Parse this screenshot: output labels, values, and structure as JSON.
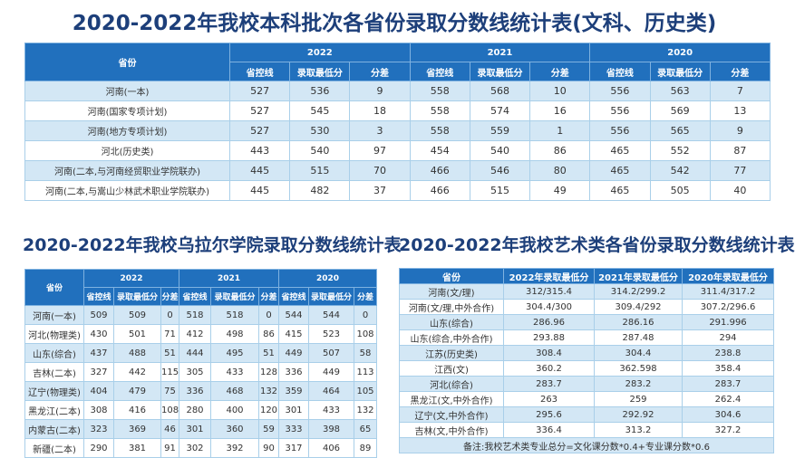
{
  "title_main": "2020-2022年我校本科批次各省份录取分数线统计表(文科、历史类)",
  "title_wulaer": "2020-2022年我校乌拉尔学院录取分数线统计表",
  "title_art": "2020-2022年我校艺术类各省份录取分数线统计表",
  "colors": {
    "header": "#2170bd",
    "row_alt": "#d3e7f5",
    "title": "#1d3f7a"
  },
  "table_main": {
    "province_header": "省份",
    "years": [
      "2022",
      "2021",
      "2020"
    ],
    "sub_headers": [
      "省控线",
      "录取最低分",
      "分差"
    ],
    "rows": [
      {
        "province": "河南(一本)",
        "values": [
          "527",
          "536",
          "9",
          "558",
          "568",
          "10",
          "556",
          "563",
          "7"
        ]
      },
      {
        "province": "河南(国家专项计划)",
        "values": [
          "527",
          "545",
          "18",
          "558",
          "574",
          "16",
          "556",
          "569",
          "13"
        ]
      },
      {
        "province": "河南(地方专项计划)",
        "values": [
          "527",
          "530",
          "3",
          "558",
          "559",
          "1",
          "556",
          "565",
          "9"
        ]
      },
      {
        "province": "河北(历史类)",
        "values": [
          "443",
          "540",
          "97",
          "454",
          "540",
          "86",
          "465",
          "552",
          "87"
        ]
      },
      {
        "province": "河南(二本,与河南经贸职业学院联办)",
        "values": [
          "445",
          "515",
          "70",
          "466",
          "546",
          "80",
          "465",
          "542",
          "77"
        ]
      },
      {
        "province": "河南(二本,与嵩山少林武术职业学院联办)",
        "values": [
          "445",
          "482",
          "37",
          "466",
          "515",
          "49",
          "465",
          "505",
          "40"
        ]
      }
    ]
  },
  "table_wulaer": {
    "province_header": "省份",
    "years": [
      "2022",
      "2021",
      "2020"
    ],
    "sub_headers": [
      "省控线",
      "录取最低分",
      "分差"
    ],
    "rows": [
      {
        "province": "河南(一本)",
        "values": [
          "509",
          "509",
          "0",
          "518",
          "518",
          "0",
          "544",
          "544",
          "0"
        ]
      },
      {
        "province": "河北(物理类)",
        "values": [
          "430",
          "501",
          "71",
          "412",
          "498",
          "86",
          "415",
          "523",
          "108"
        ]
      },
      {
        "province": "山东(综合)",
        "values": [
          "437",
          "488",
          "51",
          "444",
          "495",
          "51",
          "449",
          "507",
          "58"
        ]
      },
      {
        "province": "吉林(二本)",
        "values": [
          "327",
          "442",
          "115",
          "305",
          "433",
          "128",
          "336",
          "449",
          "113"
        ]
      },
      {
        "province": "辽宁(物理类)",
        "values": [
          "404",
          "479",
          "75",
          "336",
          "468",
          "132",
          "359",
          "464",
          "105"
        ]
      },
      {
        "province": "黑龙江(二本)",
        "values": [
          "308",
          "416",
          "108",
          "280",
          "400",
          "120",
          "301",
          "433",
          "132"
        ]
      },
      {
        "province": "内蒙古(二本)",
        "values": [
          "323",
          "369",
          "46",
          "301",
          "360",
          "59",
          "333",
          "398",
          "65"
        ]
      },
      {
        "province": "新疆(二本)",
        "values": [
          "290",
          "381",
          "91",
          "302",
          "392",
          "90",
          "317",
          "406",
          "89"
        ]
      }
    ]
  },
  "table_art": {
    "headers": [
      "省份",
      "2022年录取最低分",
      "2021年录取最低分",
      "2020年录取最低分"
    ],
    "rows": [
      [
        "河南(文/理)",
        "312/315.4",
        "314.2/299.2",
        "311.4/317.2"
      ],
      [
        "河南(文/理,中外合作)",
        "304.4/300",
        "309.4/292",
        "307.2/296.6"
      ],
      [
        "山东(综合)",
        "286.96",
        "286.16",
        "291.996"
      ],
      [
        "山东(综合,中外合作)",
        "293.88",
        "287.48",
        "294"
      ],
      [
        "江苏(历史类)",
        "308.4",
        "304.4",
        "238.8"
      ],
      [
        "江西(文)",
        "360.2",
        "362.598",
        "358.4"
      ],
      [
        "河北(综合)",
        "283.7",
        "283.2",
        "283.7"
      ],
      [
        "黑龙江(文,中外合作)",
        "263",
        "259",
        "262.4"
      ],
      [
        "辽宁(文,中外合作)",
        "295.6",
        "292.92",
        "304.6"
      ],
      [
        "吉林(文,中外合作)",
        "336.4",
        "313.2",
        "327.2"
      ]
    ],
    "note": "备注:我校艺术类专业总分=文化课分数*0.4+专业课分数*0.6"
  }
}
